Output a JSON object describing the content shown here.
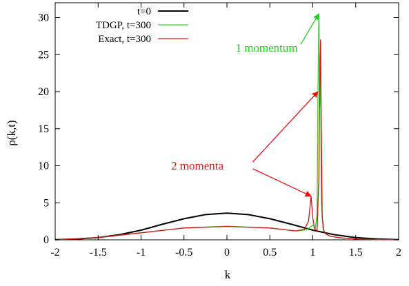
{
  "chart_data": {
    "type": "line",
    "xlabel": "k",
    "ylabel": "ρ(k,t)",
    "xlim": [
      -2,
      2
    ],
    "ylim": [
      0,
      32
    ],
    "xticks": [
      -2,
      -1.5,
      -1,
      -0.5,
      0,
      0.5,
      1,
      1.5,
      2
    ],
    "xtick_labels": [
      "-2",
      "-1.5",
      "-1",
      "-0.5",
      "0",
      "0.5",
      "1",
      "1.5",
      "2"
    ],
    "yticks": [
      0,
      5,
      10,
      15,
      20,
      25,
      30
    ],
    "ytick_labels": [
      "0",
      "5",
      "10",
      "15",
      "20",
      "25",
      "30"
    ],
    "grid": false,
    "legend_position": "top-left",
    "series": [
      {
        "name": "t=0",
        "color": "#000000",
        "x": [
          -2,
          -1.75,
          -1.5,
          -1.25,
          -1,
          -0.75,
          -0.5,
          -0.25,
          0,
          0.25,
          0.5,
          0.75,
          1,
          1.25,
          1.5,
          1.75,
          2
        ],
        "y": [
          0.03,
          0.12,
          0.3,
          0.7,
          1.3,
          2.1,
          2.85,
          3.4,
          3.6,
          3.4,
          2.85,
          2.1,
          1.3,
          0.7,
          0.3,
          0.12,
          0.03
        ]
      },
      {
        "name": "TDGP, t=300",
        "color": "#22dd22",
        "x": [
          -2,
          -1.5,
          -1,
          -0.5,
          0,
          0.5,
          0.8,
          0.9,
          0.95,
          1.0,
          1.03,
          1.05,
          1.06,
          1.07,
          1.08,
          1.09,
          1.1,
          1.12,
          1.15,
          1.2,
          1.3,
          1.5,
          1.8,
          2
        ],
        "y": [
          0.02,
          0.3,
          0.95,
          1.6,
          1.85,
          1.6,
          1.2,
          1.3,
          1.5,
          2.0,
          1.5,
          3.5,
          20.0,
          30.5,
          18.0,
          23.0,
          5.0,
          1.5,
          0.8,
          0.5,
          0.3,
          0.1,
          0.02,
          0.01
        ]
      },
      {
        "name": "Exact, t=300",
        "color": "#dd1111",
        "x": [
          -2,
          -1.5,
          -1,
          -0.5,
          0,
          0.5,
          0.8,
          0.9,
          0.95,
          0.98,
          1.0,
          1.02,
          1.05,
          1.07,
          1.08,
          1.09,
          1.1,
          1.11,
          1.13,
          1.15,
          1.2,
          1.3,
          1.5,
          1.8,
          2
        ],
        "y": [
          0.02,
          0.3,
          0.95,
          1.6,
          1.8,
          1.6,
          1.2,
          1.4,
          2.5,
          5.9,
          3.0,
          1.5,
          1.2,
          8.0,
          20.0,
          27.0,
          15.0,
          3.0,
          1.2,
          0.8,
          0.5,
          0.3,
          0.1,
          0.02,
          0.01
        ]
      }
    ],
    "annotations": [
      {
        "text": "1 momentum",
        "color": "#22cc22",
        "x": 0.1,
        "y": 25.4
      },
      {
        "text": "2 momenta",
        "color": "#ee1111",
        "x": -0.65,
        "y": 9.5
      }
    ],
    "arrows": [
      {
        "color": "#22cc22",
        "from": [
          0.86,
          26.4
        ],
        "to": [
          1.07,
          30.5
        ]
      },
      {
        "color": "#ee1111",
        "from": [
          0.3,
          10.5
        ],
        "to": [
          1.06,
          20.0
        ]
      },
      {
        "color": "#ee1111",
        "from": [
          0.3,
          9.6
        ],
        "to": [
          0.98,
          5.9
        ]
      }
    ]
  }
}
